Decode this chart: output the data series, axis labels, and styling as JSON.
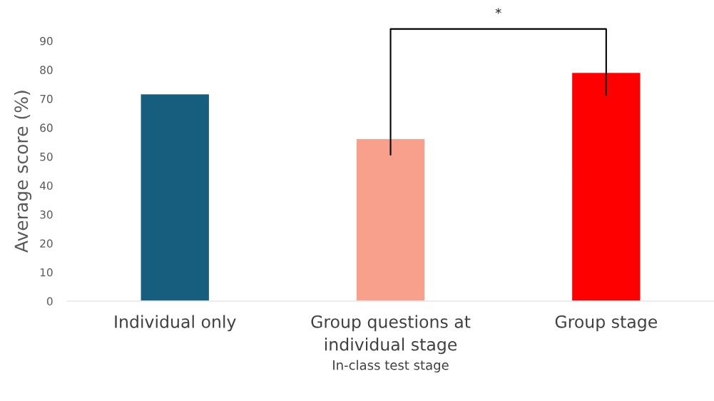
{
  "chart_data": {
    "type": "bar",
    "xlabel": "In-class test stage",
    "ylabel": "Average score (%)",
    "categories": [
      "Individual only",
      "Group questions at individual stage",
      "Group stage"
    ],
    "values": [
      71.7,
      56.2,
      79.1
    ],
    "colors": [
      "#175e7e",
      "#f9a08c",
      "#ff0000"
    ],
    "ylim": [
      0,
      90
    ],
    "yticks": [
      0,
      10,
      20,
      30,
      40,
      50,
      60,
      70,
      80,
      90
    ],
    "grid": false,
    "annotations": [
      "*"
    ]
  }
}
